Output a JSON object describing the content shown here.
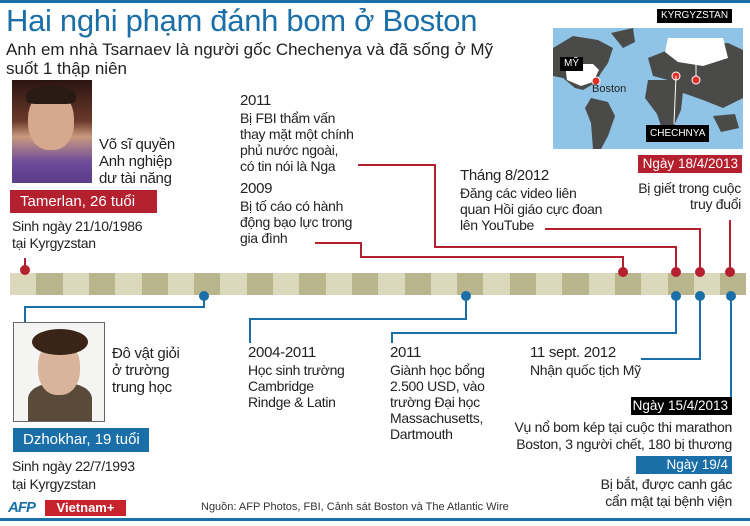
{
  "header": {
    "title": "Hai nghi phạm đánh bom ở Boston",
    "subtitle": "Anh em nhà Tsarnaev là người gốc Chechenya và đã sống ở Mỹ suốt 1 thập niên"
  },
  "map": {
    "labels": {
      "us": "MỸ",
      "boston": "Boston",
      "kyrgyzstan": "KYRGYZSTAN",
      "chechnya": "CHECHNYA"
    }
  },
  "tamerlan": {
    "caption": [
      "Võ sĩ quyền",
      "Anh nghiệp",
      "dư tài năng"
    ],
    "name": "Tamerlan, 26 tuổi",
    "birth": [
      "Sinh ngày 21/10/1986",
      "tại Kyrgyzstan"
    ]
  },
  "dzhokhar": {
    "caption": [
      "Đô vật giỏi",
      "ở trường",
      "trung học"
    ],
    "name": "Dzhokhar, 19  tuổi",
    "birth": [
      "Sinh ngày 22/7/1993",
      "tại Kyrgyzstan"
    ]
  },
  "events_tamerlan": [
    {
      "date": "2011",
      "lines": [
        "Bị FBI thẩm vấn",
        "thay mặt một chính",
        "phủ nước ngoài,",
        "có tin nói là Nga"
      ]
    },
    {
      "date": "2009",
      "lines": [
        "Bị tố cáo có hành",
        "động bạo lực trong",
        "gia đình"
      ]
    },
    {
      "date": "Tháng 8/2012",
      "lines": [
        "Đăng các video liên",
        "quan Hồi giáo cực đoan",
        "lên YouTube"
      ]
    },
    {
      "date": "Ngày 18/4/2013",
      "lines": [
        "Bị giết trong cuộc",
        "truy đuổi"
      ]
    }
  ],
  "events_dzhokhar": [
    {
      "date": "2004-2011",
      "lines": [
        "Học sinh trường",
        "Cambridge",
        "Rindge & Latin"
      ]
    },
    {
      "date": "2011",
      "lines": [
        "Giành học bổng",
        "2.500  USD, vào",
        "trường Đại học",
        "Massachusetts,",
        "Dartmouth"
      ]
    },
    {
      "date": "11 sept. 2012",
      "lines": [
        "Nhận quốc tịch Mỹ"
      ]
    },
    {
      "date": "Ngày 15/4/2013",
      "lines": [
        "Vụ nổ bom kép tại cuộc  thi marathon",
        "Boston, 3 người chết, 180 bị thương"
      ]
    },
    {
      "date": "Ngày 19/4",
      "lines": [
        "Bị bắt, được canh gác",
        "cẩn mật tại bệnh viện"
      ]
    }
  ],
  "footer": {
    "source": "Nguồn: AFP Photos, FBI, Cảnh sát Boston và The Atlantic Wire",
    "logo_afp": "AFP",
    "logo_vietnamplus": "Vietnam+"
  },
  "colors": {
    "blue": "#1a6fa8",
    "red": "#b5202e",
    "bar_light": "#dcd8bc",
    "bar_dark": "#b9b58d",
    "ocean": "#8fc4e6",
    "land": "#4a4a48"
  }
}
